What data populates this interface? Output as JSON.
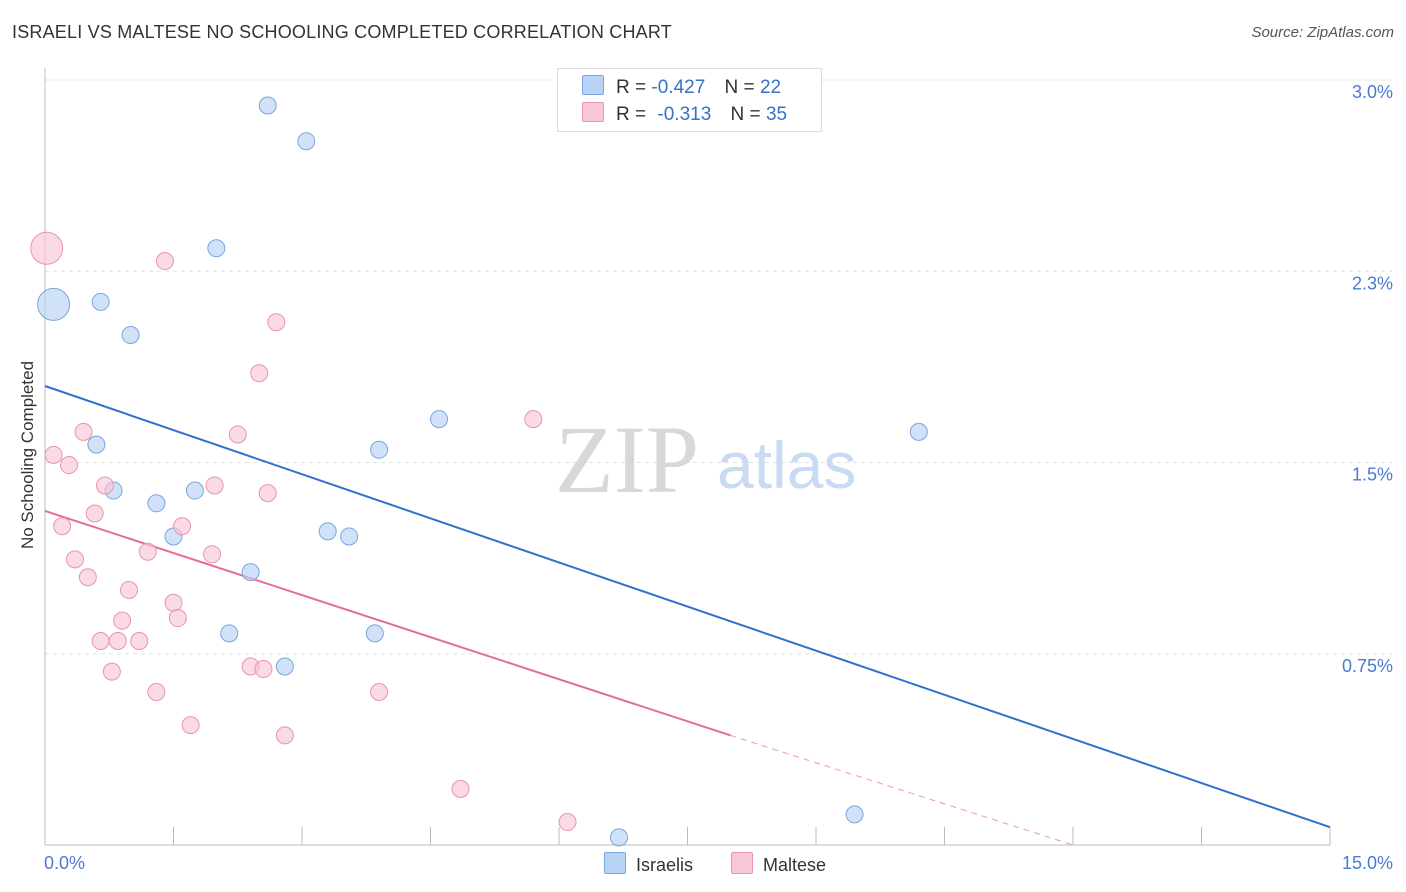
{
  "title": "ISRAELI VS MALTESE NO SCHOOLING COMPLETED CORRELATION CHART",
  "source": "Source: ZipAtlas.com",
  "watermark": {
    "zip": "ZIP",
    "atlas": "atlas"
  },
  "colors": {
    "blue_fill": "#b9d3f5",
    "blue_stroke": "#7aa6df",
    "blue_line": "#2f70d0",
    "pink_fill": "#f8c6d5",
    "pink_stroke": "#eb94ae",
    "pink_line": "#e56c94",
    "grid": "#e0e0e0",
    "tick_text": "#4a7bd0"
  },
  "legend": {
    "rows": [
      {
        "r_label": "R =",
        "r_value": "-0.427",
        "n_label": "N =",
        "n_value": "22"
      },
      {
        "r_label": "R =",
        "r_value": "-0.313",
        "n_label": "N =",
        "n_value": "35"
      }
    ]
  },
  "bottom_legend": {
    "israelis": "Israelis",
    "maltese": "Maltese"
  },
  "chart_data": {
    "type": "scatter",
    "title": "ISRAELI VS MALTESE NO SCHOOLING COMPLETED CORRELATION CHART",
    "xlabel": "",
    "ylabel": "No Schooling Completed",
    "xlim": [
      0,
      15
    ],
    "ylim": [
      0,
      3.0
    ],
    "x_tick_labels": [
      "0.0%",
      "15.0%"
    ],
    "y_ticks": [
      {
        "value": 3.0,
        "label": "3.0%"
      },
      {
        "value": 2.25,
        "label": "2.3%"
      },
      {
        "value": 1.5,
        "label": "1.5%"
      },
      {
        "value": 0.75,
        "label": "0.75%"
      }
    ],
    "series": [
      {
        "name": "Israelis",
        "r": -0.427,
        "n": 22,
        "points": [
          {
            "x": 0.1,
            "y": 2.12,
            "big": true
          },
          {
            "x": 0.65,
            "y": 2.13
          },
          {
            "x": 1.0,
            "y": 2.0
          },
          {
            "x": 0.6,
            "y": 1.57
          },
          {
            "x": 0.8,
            "y": 1.39
          },
          {
            "x": 1.3,
            "y": 1.34
          },
          {
            "x": 1.75,
            "y": 1.39
          },
          {
            "x": 1.5,
            "y": 1.21
          },
          {
            "x": 2.0,
            "y": 2.34
          },
          {
            "x": 2.6,
            "y": 2.9
          },
          {
            "x": 3.05,
            "y": 2.76
          },
          {
            "x": 2.4,
            "y": 1.07
          },
          {
            "x": 2.15,
            "y": 0.83
          },
          {
            "x": 2.8,
            "y": 0.7
          },
          {
            "x": 3.3,
            "y": 1.23
          },
          {
            "x": 3.55,
            "y": 1.21
          },
          {
            "x": 3.9,
            "y": 1.55
          },
          {
            "x": 3.85,
            "y": 0.83
          },
          {
            "x": 4.6,
            "y": 1.67
          },
          {
            "x": 6.7,
            "y": 0.03
          },
          {
            "x": 9.45,
            "y": 0.12
          },
          {
            "x": 10.2,
            "y": 1.62
          }
        ],
        "trend": {
          "x0": 0,
          "y0": 1.8,
          "x1": 15,
          "y1": 0.07
        }
      },
      {
        "name": "Maltese",
        "r": -0.313,
        "n": 35,
        "points": [
          {
            "x": 0.02,
            "y": 2.34,
            "big": true
          },
          {
            "x": 0.1,
            "y": 1.53
          },
          {
            "x": 0.2,
            "y": 1.25
          },
          {
            "x": 0.28,
            "y": 1.49
          },
          {
            "x": 0.35,
            "y": 1.12
          },
          {
            "x": 0.45,
            "y": 1.62
          },
          {
            "x": 0.5,
            "y": 1.05
          },
          {
            "x": 0.58,
            "y": 1.3
          },
          {
            "x": 0.65,
            "y": 0.8
          },
          {
            "x": 0.7,
            "y": 1.41
          },
          {
            "x": 0.78,
            "y": 0.68
          },
          {
            "x": 0.85,
            "y": 0.8
          },
          {
            "x": 0.9,
            "y": 0.88
          },
          {
            "x": 0.98,
            "y": 1.0
          },
          {
            "x": 1.1,
            "y": 0.8
          },
          {
            "x": 1.2,
            "y": 1.15
          },
          {
            "x": 1.3,
            "y": 0.6
          },
          {
            "x": 1.4,
            "y": 2.29
          },
          {
            "x": 1.5,
            "y": 0.95
          },
          {
            "x": 1.55,
            "y": 0.89
          },
          {
            "x": 1.6,
            "y": 1.25
          },
          {
            "x": 1.7,
            "y": 0.47
          },
          {
            "x": 1.95,
            "y": 1.14
          },
          {
            "x": 1.98,
            "y": 1.41
          },
          {
            "x": 2.25,
            "y": 1.61
          },
          {
            "x": 2.4,
            "y": 0.7
          },
          {
            "x": 2.5,
            "y": 1.85
          },
          {
            "x": 2.55,
            "y": 0.69
          },
          {
            "x": 2.6,
            "y": 1.38
          },
          {
            "x": 2.7,
            "y": 2.05
          },
          {
            "x": 2.8,
            "y": 0.43
          },
          {
            "x": 3.9,
            "y": 0.6
          },
          {
            "x": 4.85,
            "y": 0.22
          },
          {
            "x": 5.7,
            "y": 1.67
          },
          {
            "x": 6.1,
            "y": 0.09
          }
        ],
        "trend": {
          "x0": 0,
          "y0": 1.31,
          "x1": 8.0,
          "y1": 0.43
        },
        "trend_dashed": {
          "x0": 8.0,
          "y0": 0.43,
          "x1": 12.0,
          "y1": 0.0
        }
      }
    ]
  }
}
